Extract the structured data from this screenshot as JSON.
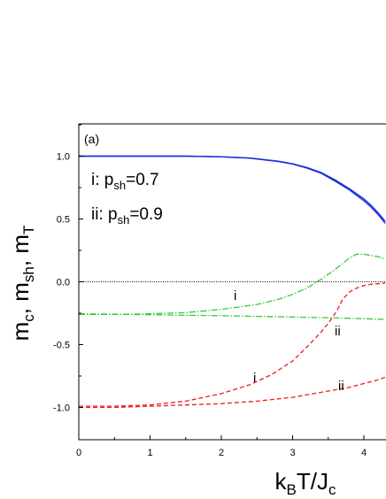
{
  "chart_data": {
    "type": "line",
    "panel_label": "(a)",
    "xlabel": "k_BT/J_c",
    "ylabel": "m_c, m_sh, m_T",
    "xlim": [
      0,
      4.3
    ],
    "ylim": [
      -1.25,
      1.25
    ],
    "xticks": [
      0,
      1,
      2,
      3,
      4
    ],
    "yticks": [
      1.0,
      0.5,
      0.0,
      -0.5,
      -1.0
    ],
    "ytick_labels": [
      "1.0",
      "0.5",
      "0.0",
      "-0.5",
      "-1.0"
    ],
    "grid": false,
    "legend_text": [
      "i: p_sh=0.7",
      "ii: p_sh=0.9"
    ],
    "series_labels": {
      "i": "i",
      "ii": "ii"
    },
    "colors": {
      "blue": "#1f2fd6",
      "green": "#33cc33",
      "red": "#ee1c1c",
      "axis": "#000000",
      "reference": "#000000"
    },
    "reference_line_y": 0.0,
    "series": [
      {
        "color": "blue",
        "dash": "solid",
        "label": "i",
        "x": [
          0,
          0.5,
          1.0,
          1.5,
          2.0,
          2.4,
          2.8,
          3.0,
          3.2,
          3.4,
          3.6,
          3.8,
          4.0,
          4.1,
          4.2,
          4.3
        ],
        "y": [
          1.0,
          1.0,
          1.0,
          1.0,
          0.995,
          0.985,
          0.96,
          0.94,
          0.91,
          0.87,
          0.81,
          0.74,
          0.66,
          0.61,
          0.55,
          0.48
        ]
      },
      {
        "color": "blue",
        "dash": "solid",
        "label": "ii",
        "x": [
          0,
          0.5,
          1.0,
          1.5,
          2.0,
          2.4,
          2.8,
          3.0,
          3.2,
          3.4,
          3.6,
          3.8,
          4.0,
          4.1,
          4.2,
          4.3
        ],
        "y": [
          1.0,
          1.0,
          1.0,
          1.0,
          0.995,
          0.984,
          0.958,
          0.937,
          0.905,
          0.864,
          0.8,
          0.73,
          0.645,
          0.595,
          0.535,
          0.465
        ]
      },
      {
        "color": "green",
        "dash": "dashdot",
        "label": "i",
        "x": [
          0,
          0.5,
          1.0,
          1.5,
          2.0,
          2.5,
          2.8,
          3.0,
          3.2,
          3.4,
          3.6,
          3.8,
          3.9,
          4.0,
          4.1,
          4.2,
          4.3
        ],
        "y": [
          -0.26,
          -0.26,
          -0.255,
          -0.245,
          -0.22,
          -0.18,
          -0.14,
          -0.1,
          -0.05,
          0.02,
          0.1,
          0.19,
          0.22,
          0.22,
          0.21,
          0.2,
          0.18
        ]
      },
      {
        "color": "green",
        "dash": "dashdot",
        "label": "ii",
        "x": [
          0,
          0.5,
          1.0,
          1.5,
          2.0,
          2.5,
          3.0,
          3.5,
          4.0,
          4.3
        ],
        "y": [
          -0.255,
          -0.258,
          -0.262,
          -0.266,
          -0.27,
          -0.275,
          -0.28,
          -0.286,
          -0.294,
          -0.3
        ]
      },
      {
        "color": "red",
        "dash": "dashed",
        "label": "i",
        "x": [
          0,
          0.5,
          1.0,
          1.5,
          2.0,
          2.4,
          2.7,
          3.0,
          3.2,
          3.4,
          3.5,
          3.6,
          3.65,
          3.7,
          3.8,
          3.9,
          4.0,
          4.1,
          4.3
        ],
        "y": [
          -0.99,
          -0.99,
          -0.98,
          -0.95,
          -0.89,
          -0.82,
          -0.74,
          -0.63,
          -0.52,
          -0.4,
          -0.33,
          -0.25,
          -0.2,
          -0.14,
          -0.08,
          -0.05,
          -0.03,
          -0.02,
          -0.01
        ]
      },
      {
        "color": "red",
        "dash": "dashed",
        "label": "ii",
        "x": [
          0,
          0.5,
          1.0,
          1.5,
          2.0,
          2.5,
          3.0,
          3.5,
          3.8,
          4.0,
          4.2,
          4.3
        ],
        "y": [
          -1.0,
          -1.0,
          -0.99,
          -0.98,
          -0.97,
          -0.95,
          -0.92,
          -0.87,
          -0.84,
          -0.81,
          -0.78,
          -0.76
        ]
      }
    ]
  }
}
